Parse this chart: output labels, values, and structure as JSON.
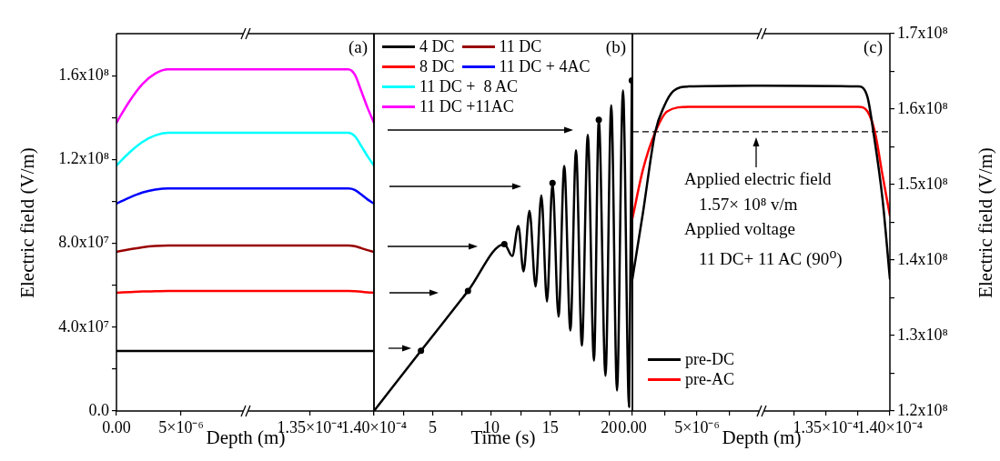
{
  "chart_data": [
    {
      "type": "line",
      "ylabel": "Electric field (V/m)",
      "xlabel": "Depth (m)",
      "legend": "right",
      "xlim": [
        0,
        1e-05
      ],
      "xticks": [
        {
          "value": 0,
          "label": "0.00"
        },
        {
          "value": 5e-06,
          "label": "5×10⁻⁶"
        }
      ],
      "ylim": [
        0,
        180000000.0
      ],
      "yticks": [
        {
          "value": 0,
          "label": "0.0"
        },
        {
          "value": 20000000.0,
          "label": null
        },
        {
          "value": 40000000.0,
          "label": "4.0x10⁷"
        },
        {
          "value": 60000000.0,
          "label": null
        },
        {
          "value": 80000000.0,
          "label": "8.0x10⁷"
        },
        {
          "value": 100000000.0,
          "label": null
        },
        {
          "value": 120000000.0,
          "label": "1.2x10⁸"
        },
        {
          "value": 140000000.0,
          "label": null
        },
        {
          "value": 160000000.0,
          "label": "1.6x10⁸"
        }
      ],
      "x": [
        0,
        1e-06,
        2e-06,
        3e-06,
        4e-06,
        1e-05
      ],
      "series": [
        {
          "name": "4 DC",
          "color": "#000000",
          "values": [
            28600000.0,
            28600000.0,
            28600000.0,
            28600000.0,
            28600000.0,
            28600000.0
          ]
        },
        {
          "name": "8 DC",
          "color": "#ff0000",
          "values": [
            56400000.0,
            56700000.0,
            57000000.0,
            57100000.0,
            57200000.0,
            57200000.0
          ]
        },
        {
          "name": "11 DC",
          "color": "#990000",
          "values": [
            75900000.0,
            77100000.0,
            78100000.0,
            78700000.0,
            78900000.0,
            78900000.0
          ]
        },
        {
          "name": "11 DC + 4AC",
          "color": "#0000ff",
          "values": [
            98900000.0,
            101800000.0,
            104200000.0,
            105600000.0,
            106200000.0,
            106200000.0
          ]
        },
        {
          "name": "11 DC +  8 AC",
          "color": "#00ffff",
          "values": [
            117100000.0,
            123300000.0,
            128300000.0,
            131500000.0,
            132700000.0,
            132700000.0
          ]
        },
        {
          "name": "11 DC +11AC",
          "color": "#ff00ff",
          "values": [
            137500000.0,
            147700000.0,
            155900000.0,
            161000000.0,
            163000000.0,
            163000000.0
          ]
        }
      ]
    },
    {
      "type": "line",
      "annotations": [
        "(a)"
      ],
      "tick_labels": "x",
      "xlim": [
        0.00013,
        0.00014
      ],
      "xticks": [
        {
          "value": 0.000135,
          "label": "1.35×10⁻⁴"
        },
        {
          "value": 0.00014,
          "label": "1.40×10⁻⁴"
        }
      ],
      "ylim": [
        0,
        180000000.0
      ],
      "x": [
        0.00013,
        0.000138,
        0.0001385,
        0.000139,
        0.0001395,
        0.00014
      ],
      "series": [
        {
          "color": "#000000",
          "values": [
            28600000.0,
            28600000.0,
            28600000.0,
            28600000.0,
            28600000.0,
            28600000.0
          ]
        },
        {
          "color": "#ff0000",
          "values": [
            57200000.0,
            57200000.0,
            57100000.0,
            56900000.0,
            56600000.0,
            56400000.0
          ]
        },
        {
          "color": "#990000",
          "values": [
            78900000.0,
            78900000.0,
            78600000.0,
            77700000.0,
            76700000.0,
            75900000.0
          ]
        },
        {
          "color": "#0000ff",
          "values": [
            106200000.0,
            106200000.0,
            105500000.0,
            103300000.0,
            100900000.0,
            98900000.0
          ]
        },
        {
          "color": "#00ffff",
          "values": [
            132700000.0,
            132700000.0,
            131100000.0,
            126500000.0,
            121500000.0,
            117100000.0
          ]
        },
        {
          "color": "#ff00ff",
          "values": [
            163000000.0,
            163000000.0,
            160500000.0,
            152800000.0,
            144600000.0,
            137500000.0
          ]
        }
      ]
    },
    {
      "type": "line",
      "xlabel": "Time (s)",
      "annotations": [
        "(b)"
      ],
      "tick_labels": "x",
      "xlim": [
        0,
        22
      ],
      "xticks": [
        {
          "value": 0,
          "label": null
        },
        {
          "value": 2.5,
          "label": null
        },
        5,
        {
          "value": 7.5,
          "label": null
        },
        10,
        {
          "value": 12.5,
          "label": null
        },
        15,
        {
          "value": 17.5,
          "label": null
        },
        20
      ],
      "ylim": [
        0,
        180000000.0
      ],
      "series": [
        {
          "color": "#000000",
          "x": [
            0,
            4,
            8,
            11.1,
            11.77,
            12.29,
            12.73,
            13.24,
            13.76,
            14.25,
            14.73,
            15.2,
            15.71,
            16.2,
            16.72,
            17.2,
            17.7,
            18.2,
            18.73,
            19.14,
            19.71,
            20.2,
            20.69,
            21.2,
            21.72,
            21.95
          ],
          "values": [
            0,
            28700000.0,
            57200000.0,
            79600000.0,
            73900000.0,
            88300000.0,
            66600000.0,
            95500000.0,
            59400000.0,
            102800000.0,
            52200000.0,
            108800000.0,
            45000000.0,
            116900000.0,
            38400000.0,
            124400000.0,
            31200000.0,
            131700000.0,
            24000000.0,
            138900000.0,
            16800000.0,
            145800000.0,
            9800000.0,
            152900000.0,
            2000000.0,
            157700000.0
          ]
        },
        {
          "type": "scatter",
          "marker": "circle",
          "color": "#000000",
          "x": [
            4,
            8,
            11.1,
            15.2,
            19.14,
            21.95
          ],
          "values": [
            28700000.0,
            57200000.0,
            79600000.0,
            108800000.0,
            138900000.0,
            157700000.0
          ]
        }
      ]
    },
    {
      "type": "line",
      "xlabel": "Depth (m)",
      "legend": "bottom left",
      "tick_labels": "x",
      "annotations": [
        "Applied electric field",
        "1.57× 10⁸ v/m",
        "Applied voltage",
        "11 DC+ 11 AC (90$^{o}$)"
      ],
      "xlim": [
        0,
        1e-05
      ],
      "xticks": [
        {
          "value": 0,
          "label": "0.00"
        },
        {
          "value": 2.5e-06,
          "label": null
        },
        {
          "value": 5e-06,
          "label": "5×10⁻⁶"
        },
        {
          "value": 7.5e-06,
          "label": null
        }
      ],
      "y2lim": [
        120000000.0,
        170000000.0
      ],
      "ref_lines": [
        {
          "axis": "y2",
          "value": 157000000.0,
          "line_style": "dashed"
        }
      ],
      "series": [
        {
          "name": "pre-DC",
          "axis": "y2",
          "color": "#000000",
          "x": [
            0,
            8.2e-07,
            1.76e-06,
            2.46e-06,
            3.17e-06,
            4.34e-06,
            1e-05
          ],
          "values": [
            137500000.0,
            146300000.0,
            156900000.0,
            160400000.0,
            162400000.0,
            163000000.0,
            163100000.0
          ]
        },
        {
          "name": "pre-AC",
          "axis": "y2",
          "color": "#ff0000",
          "x": [
            0,
            8.2e-07,
            1.76e-06,
            2.7e-06,
            4.34e-06,
            1e-05
          ],
          "values": [
            145500000.0,
            152000000.0,
            156900000.0,
            159700000.0,
            160300000.0,
            160300000.0
          ]
        }
      ]
    },
    {
      "type": "line",
      "y2label": "Electric field (V/m)",
      "annotations": [
        "(c)"
      ],
      "xlim": [
        0.00013,
        0.00014
      ],
      "xticks": [
        {
          "value": 0.0001325,
          "label": null
        },
        {
          "value": 0.000135,
          "label": "1.35×10⁻⁴"
        },
        {
          "value": 0.0001375,
          "label": null
        },
        {
          "value": 0.00014,
          "label": "1.40×10⁻⁴"
        }
      ],
      "y2lim": [
        120000000.0,
        170000000.0
      ],
      "y2ticks": [
        {
          "value": 120000000.0,
          "label": "1.2x10⁸"
        },
        {
          "value": 125000000.0,
          "label": null
        },
        {
          "value": 130000000.0,
          "label": "1.3x10⁸"
        },
        {
          "value": 135000000.0,
          "label": null
        },
        {
          "value": 140000000.0,
          "label": "1.4x10⁸"
        },
        {
          "value": 145000000.0,
          "label": null
        },
        {
          "value": 150000000.0,
          "label": "1.5x10⁸"
        },
        {
          "value": 155000000.0,
          "label": null
        },
        {
          "value": 160000000.0,
          "label": "1.6x10⁸"
        },
        {
          "value": 165000000.0,
          "label": null
        },
        {
          "value": 170000000.0,
          "label": "1.7x10⁸"
        }
      ],
      "ref_lines": [
        {
          "axis": "y2",
          "value": 157000000.0,
          "line_style": "dashed"
        }
      ],
      "series": [
        {
          "axis": "y2",
          "color": "#000000",
          "x": [
            0.00013,
            0.00013754,
            0.00013825,
            0.00013872,
            0.00013943,
            0.00014
          ],
          "values": [
            163100000.0,
            163000000.0,
            161600000.0,
            156900000.0,
            148000000.0,
            137500000.0
          ]
        },
        {
          "axis": "y2",
          "color": "#ff0000",
          "x": [
            0.00013,
            0.00013754,
            0.00013825,
            0.00013884,
            0.00013943,
            0.00014
          ],
          "values": [
            160300000.0,
            160300000.0,
            159700000.0,
            156900000.0,
            151200000.0,
            145900000.0
          ]
        }
      ]
    }
  ]
}
